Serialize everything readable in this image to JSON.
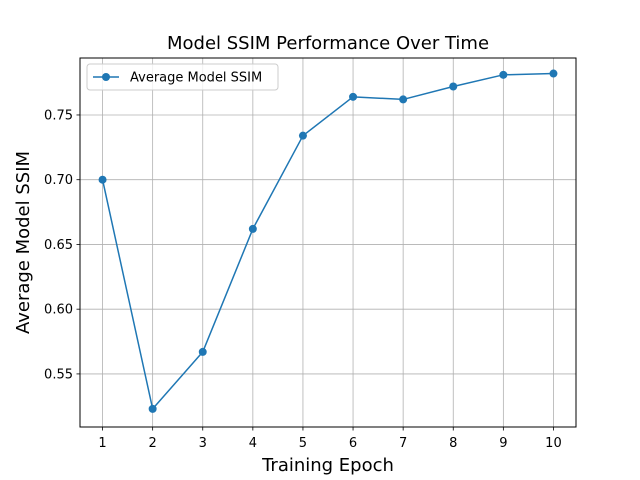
{
  "chart_data": {
    "type": "line",
    "title": "Model SSIM Performance Over Time",
    "xlabel": "Training Epoch",
    "ylabel": "Average Model SSIM",
    "x": [
      1,
      2,
      3,
      4,
      5,
      6,
      7,
      8,
      9,
      10
    ],
    "x_ticks": [
      "1",
      "2",
      "3",
      "4",
      "5",
      "6",
      "7",
      "8",
      "9",
      "10"
    ],
    "y_ticks": [
      "0.55",
      "0.60",
      "0.65",
      "0.70",
      "0.75"
    ],
    "y_tick_values": [
      0.55,
      0.6,
      0.65,
      0.7,
      0.75
    ],
    "xlim": [
      0.55,
      10.45
    ],
    "ylim": [
      0.509,
      0.794
    ],
    "grid": true,
    "legend_position": "top-left",
    "series": [
      {
        "name": "Average Model SSIM",
        "color": "#1f77b4",
        "marker": "circle",
        "values": [
          0.7,
          0.523,
          0.567,
          0.662,
          0.734,
          0.764,
          0.762,
          0.772,
          0.781,
          0.782
        ]
      }
    ]
  }
}
